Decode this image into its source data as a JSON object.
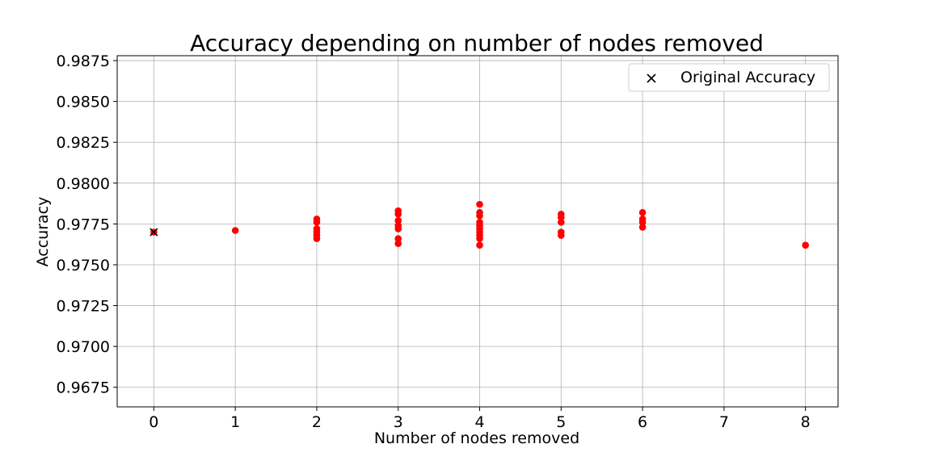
{
  "chart_data": {
    "type": "scatter",
    "title": "Accuracy depending on number of nodes removed",
    "xlabel": "Number of nodes removed",
    "ylabel": "Accuracy",
    "xlim": [
      -0.45,
      8.4
    ],
    "ylim": [
      0.9663,
      0.9878
    ],
    "x_ticks": [
      0,
      1,
      2,
      3,
      4,
      5,
      6,
      7,
      8
    ],
    "y_ticks": [
      0.9675,
      0.97,
      0.9725,
      0.975,
      0.9775,
      0.98,
      0.9825,
      0.985,
      0.9875
    ],
    "y_tick_labels": [
      "0.9675",
      "0.9700",
      "0.9725",
      "0.9750",
      "0.9775",
      "0.9800",
      "0.9825",
      "0.9850",
      "0.9875"
    ],
    "grid": true,
    "legend_position": "top-right",
    "series": [
      {
        "marker": "circle",
        "color": "#ff0000",
        "points": [
          [
            0,
            0.977
          ],
          [
            1,
            0.9771
          ],
          [
            2,
            0.9778
          ],
          [
            2,
            0.9776
          ],
          [
            2,
            0.9772
          ],
          [
            2,
            0.977
          ],
          [
            2,
            0.9768
          ],
          [
            2,
            0.9766
          ],
          [
            3,
            0.9783
          ],
          [
            3,
            0.9781
          ],
          [
            3,
            0.9777
          ],
          [
            3,
            0.9774
          ],
          [
            3,
            0.9772
          ],
          [
            3,
            0.9766
          ],
          [
            3,
            0.9763
          ],
          [
            4,
            0.9787
          ],
          [
            4,
            0.9782
          ],
          [
            4,
            0.978
          ],
          [
            4,
            0.9776
          ],
          [
            4,
            0.9774
          ],
          [
            4,
            0.9772
          ],
          [
            4,
            0.977
          ],
          [
            4,
            0.9768
          ],
          [
            4,
            0.9766
          ],
          [
            4,
            0.9762
          ],
          [
            5,
            0.9781
          ],
          [
            5,
            0.9779
          ],
          [
            5,
            0.9776
          ],
          [
            5,
            0.977
          ],
          [
            5,
            0.9768
          ],
          [
            6,
            0.9782
          ],
          [
            6,
            0.9778
          ],
          [
            6,
            0.9776
          ],
          [
            6,
            0.9773
          ],
          [
            8,
            0.9762
          ]
        ]
      },
      {
        "name": "Original Accuracy",
        "marker": "x",
        "color": "#000000",
        "points": [
          [
            0,
            0.977
          ]
        ]
      }
    ]
  }
}
